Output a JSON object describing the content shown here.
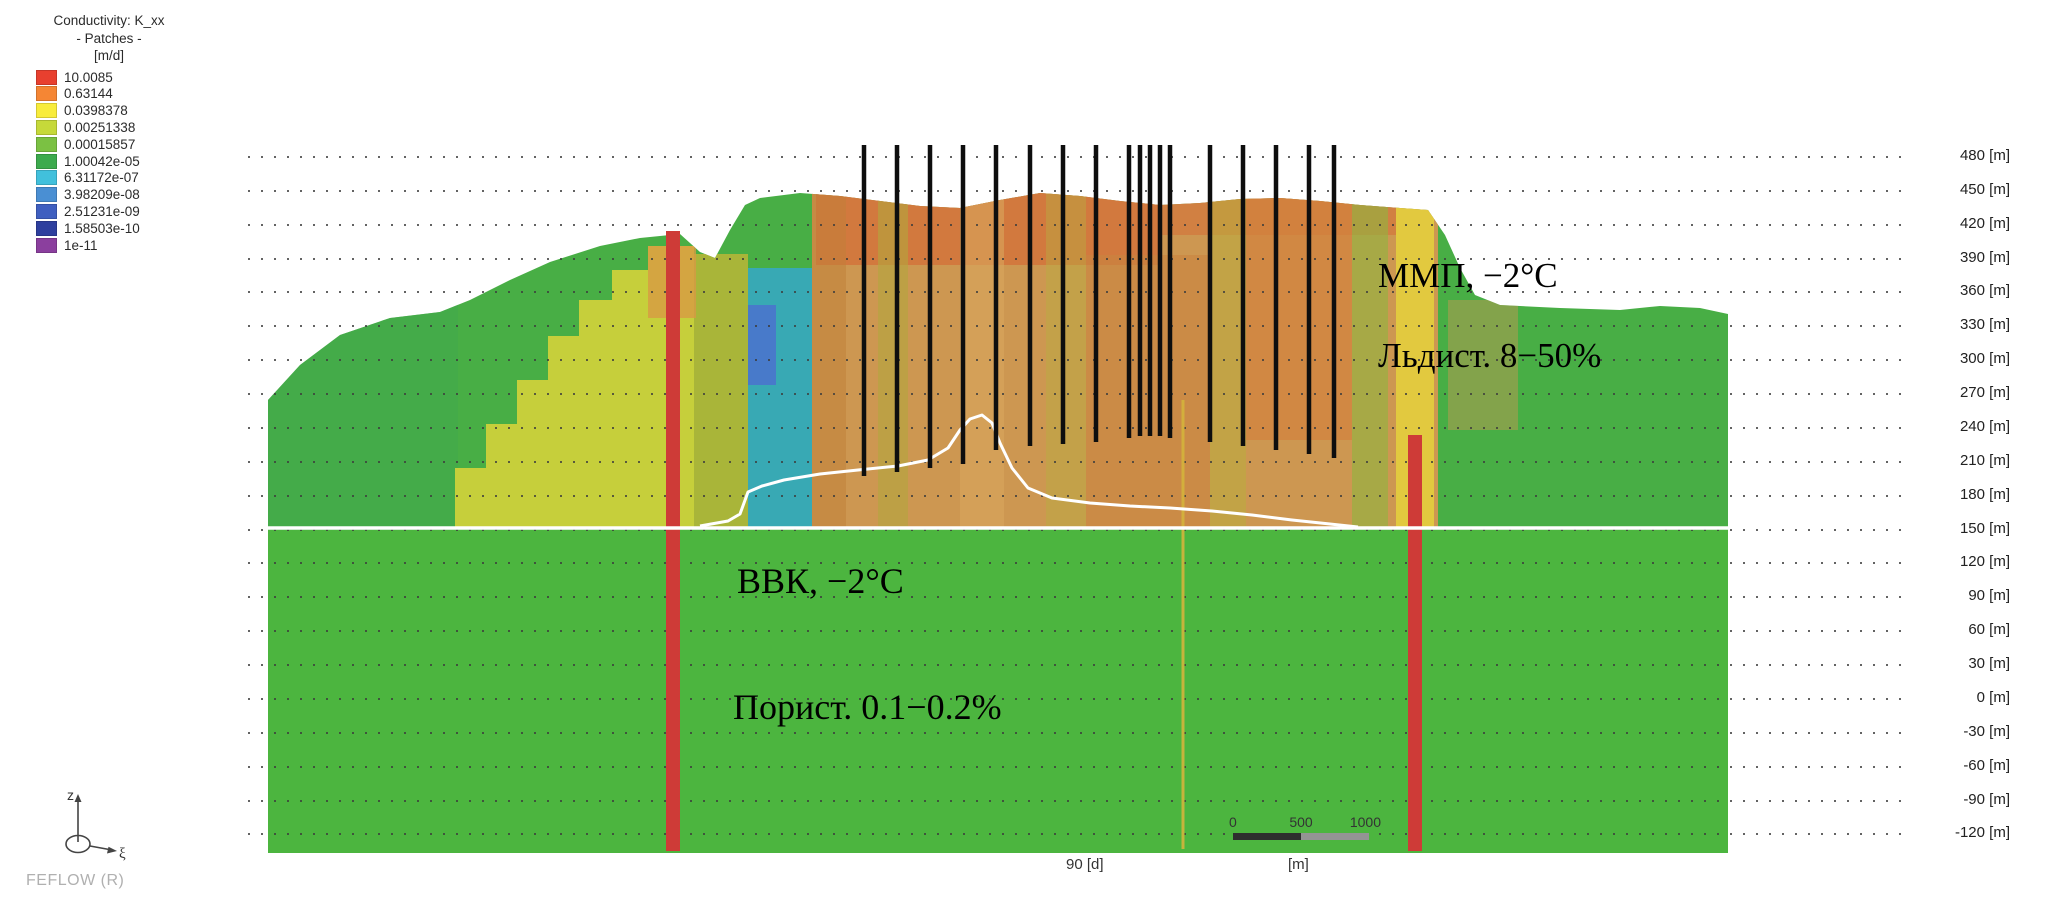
{
  "legend": {
    "title_line1": "Conductivity: K_xx",
    "title_line2": "- Patches -",
    "title_line3": "[m/d]",
    "entries": [
      {
        "name": "red",
        "color": "#e8402f",
        "value": "10.0085"
      },
      {
        "name": "orange",
        "color": "#f58634",
        "value": "0.63144"
      },
      {
        "name": "yellow",
        "color": "#f8ec3b",
        "value": "0.0398378"
      },
      {
        "name": "yellowgreen",
        "color": "#c6d93a",
        "value": "0.00251338"
      },
      {
        "name": "lightgreen",
        "color": "#7bc143",
        "value": "0.00015857"
      },
      {
        "name": "green",
        "color": "#3caa4d",
        "value": "1.00042e-05"
      },
      {
        "name": "cyan",
        "color": "#41c0dc",
        "value": "6.31172e-07"
      },
      {
        "name": "lightblue",
        "color": "#4a8fd3",
        "value": "3.98209e-08"
      },
      {
        "name": "blue",
        "color": "#3f5fc0",
        "value": "2.51231e-09"
      },
      {
        "name": "darkblue",
        "color": "#2e3f9e",
        "value": "1.58503e-10"
      },
      {
        "name": "purple",
        "color": "#8b3f9e",
        "value": "1e-11"
      }
    ]
  },
  "axis": {
    "labels": [
      "480 [m]",
      "450 [m]",
      "420 [m]",
      "390 [m]",
      "360 [m]",
      "330 [m]",
      "300 [m]",
      "270 [m]",
      "240 [m]",
      "210 [m]",
      "180 [m]",
      "150 [m]",
      "120 [m]",
      "90 [m]",
      "60 [m]",
      "30 [m]",
      "0 [m]",
      "-30 [m]",
      "-60 [m]",
      "-90 [m]",
      "-120 [m]"
    ]
  },
  "annotations": {
    "mmp": "ММП, −2°C",
    "ldist": "Льдист.  8−50%",
    "vvk": "ВВК,  −2°C",
    "porosity": "Порист. 0.1−0.2%"
  },
  "footer": {
    "time_label": "90 [d]",
    "scale_ticks": [
      "0",
      "500",
      "1000"
    ],
    "scale_unit": "[m]",
    "brand": "FEFLOW (R)"
  },
  "axes_icon": {
    "z": "z",
    "xi": "ξ"
  }
}
